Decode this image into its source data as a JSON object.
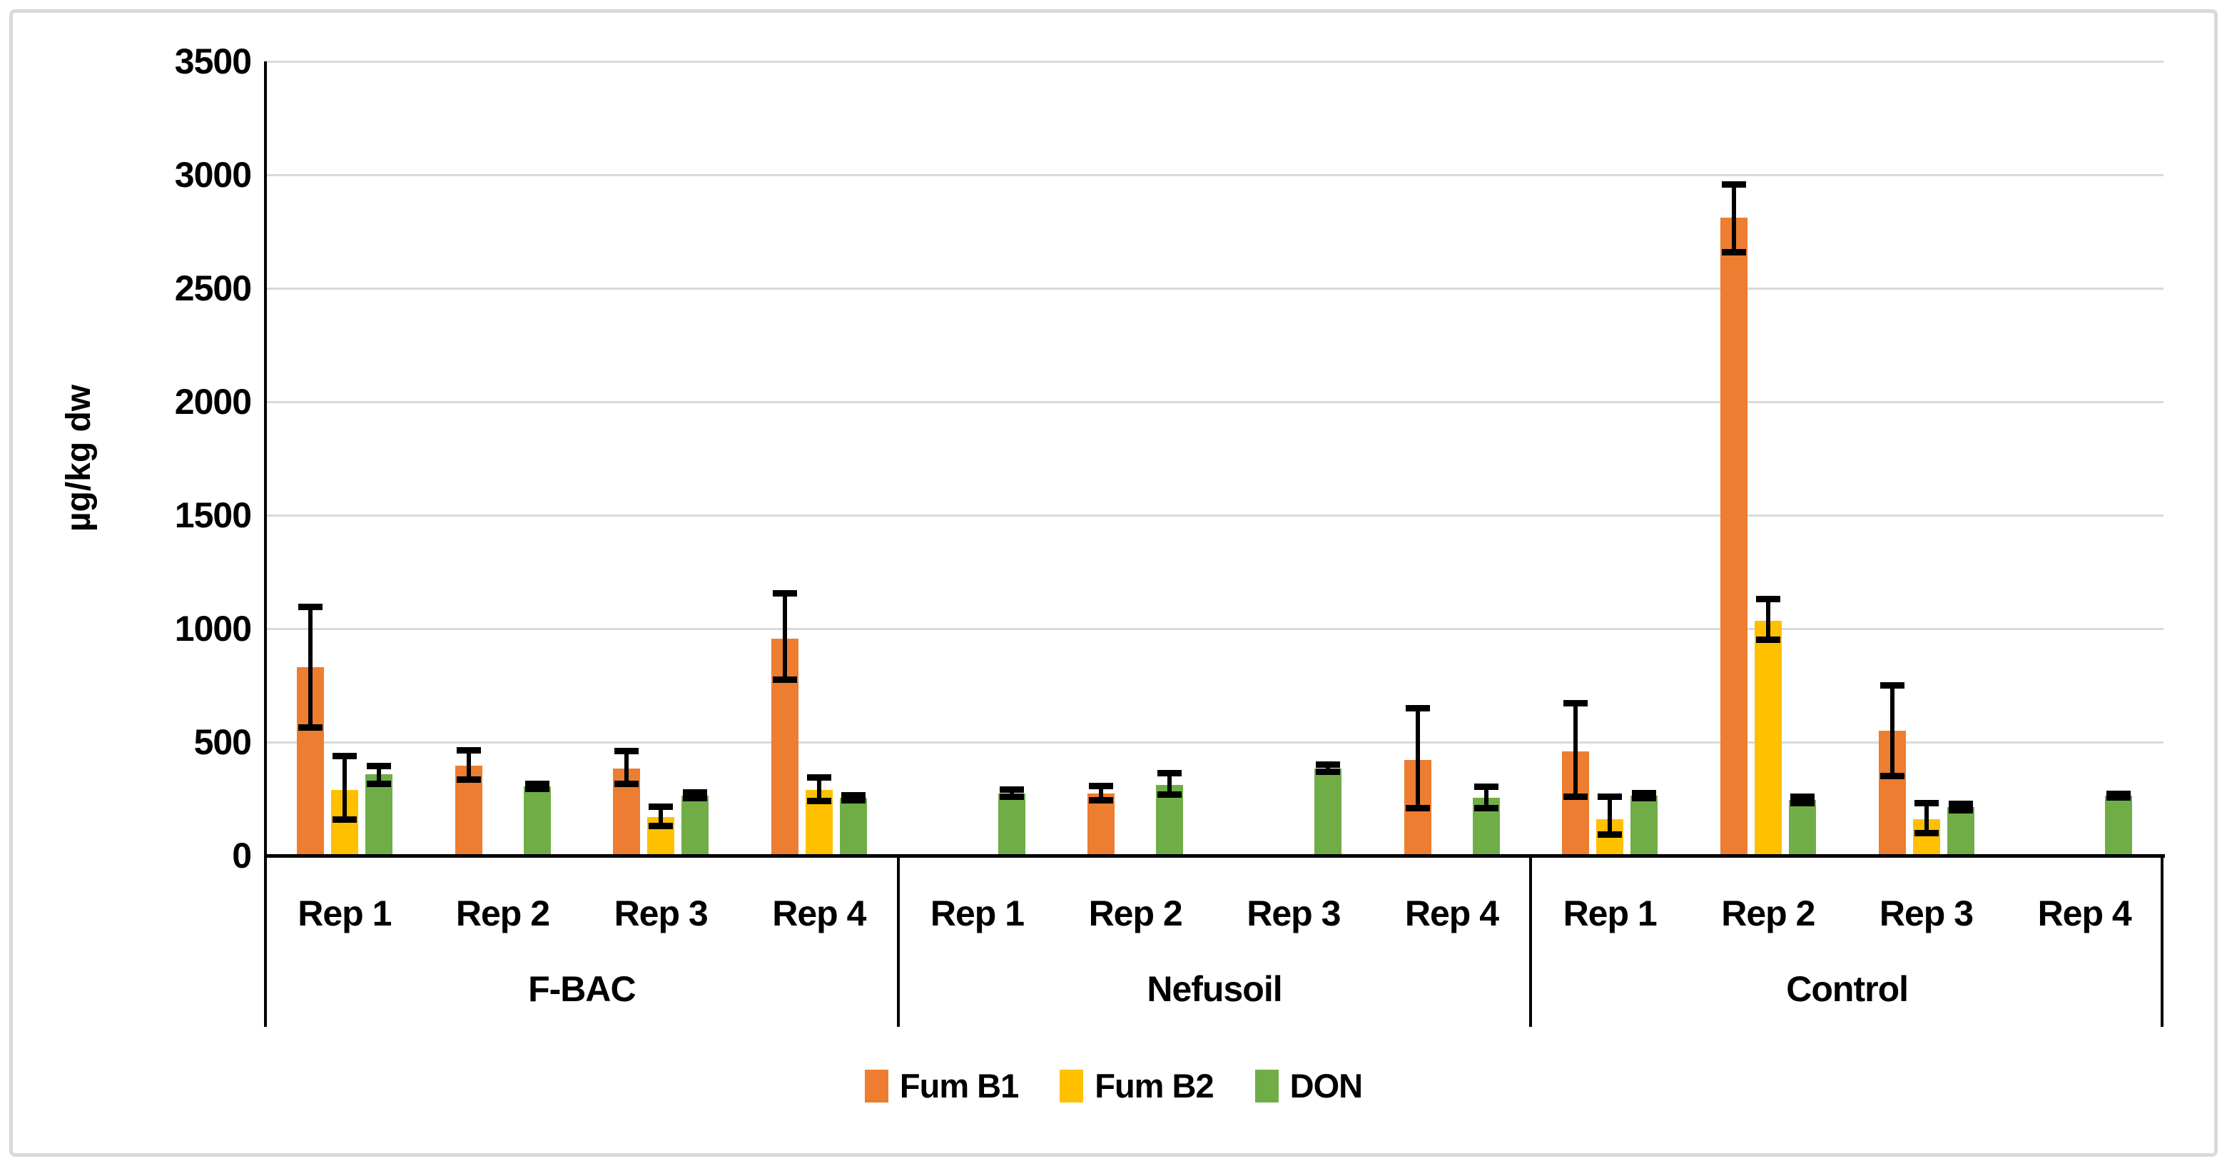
{
  "chart_data": {
    "type": "bar",
    "title": "",
    "ylabel": "µg/kg dw",
    "xlabel": "",
    "ylim": [
      0,
      3500
    ],
    "ytick_step": 500,
    "y_ticks": [
      "0",
      "500",
      "1000",
      "1500",
      "2000",
      "2500",
      "3000",
      "3500"
    ],
    "grid": true,
    "legend_position": "bottom",
    "series": [
      {
        "name": "Fum B1",
        "color": "#ED7D31"
      },
      {
        "name": "Fum B2",
        "color": "#FFC000"
      },
      {
        "name": "DON",
        "color": "#70AD47"
      }
    ],
    "rep_labels": [
      "Rep 1",
      "Rep 2",
      "Rep 3",
      "Rep 4"
    ],
    "groups": [
      {
        "label": "F-BAC",
        "reps": [
          {
            "label": "Rep 1",
            "values": [
              830,
              290,
              360
            ],
            "errors": [
              [
                565,
                1095
              ],
              [
                160,
                440
              ],
              [
                315,
                395
              ]
            ]
          },
          {
            "label": "Rep 2",
            "values": [
              395,
              0,
              305
            ],
            "errors": [
              [
                335,
                465
              ],
              null,
              [
                293,
                317
              ]
            ]
          },
          {
            "label": "Rep 3",
            "values": [
              385,
              170,
              265
            ],
            "errors": [
              [
                315,
                460
              ],
              [
                130,
                215
              ],
              [
                253,
                277
              ]
            ]
          },
          {
            "label": "Rep 4",
            "values": [
              955,
              290,
              255
            ],
            "errors": [
              [
                775,
                1155
              ],
              [
                240,
                345
              ],
              [
                245,
                265
              ]
            ]
          }
        ]
      },
      {
        "label": "Nefusoil",
        "reps": [
          {
            "label": "Rep 1",
            "values": [
              0,
              0,
              275
            ],
            "errors": [
              null,
              null,
              [
                258,
                292
              ]
            ]
          },
          {
            "label": "Rep 2",
            "values": [
              275,
              0,
              310
            ],
            "errors": [
              [
                243,
                307
              ],
              null,
              [
                268,
                364
              ]
            ]
          },
          {
            "label": "Rep 3",
            "values": [
              0,
              0,
              385
            ],
            "errors": [
              null,
              null,
              [
                368,
                402
              ]
            ]
          },
          {
            "label": "Rep 4",
            "values": [
              420,
              0,
              255
            ],
            "errors": [
              [
                210,
                650
              ],
              null,
              [
                208,
                304
              ]
            ]
          }
        ]
      },
      {
        "label": "Control",
        "reps": [
          {
            "label": "Rep 1",
            "values": [
              460,
              160,
              265
            ],
            "errors": [
              [
                258,
                670
              ],
              [
                94,
                260
              ],
              [
                254,
                276
              ]
            ]
          },
          {
            "label": "Rep 2",
            "values": [
              2810,
              1035,
              245
            ],
            "errors": [
              [
                2660,
                2958
              ],
              [
                950,
                1130
              ],
              [
                231,
                259
              ]
            ]
          },
          {
            "label": "Rep 3",
            "values": [
              550,
              160,
              215
            ],
            "errors": [
              [
                351,
                749
              ],
              [
                99,
                231
              ],
              [
                201,
                229
              ]
            ]
          },
          {
            "label": "Rep 4",
            "values": [
              0,
              0,
              265
            ],
            "errors": [
              null,
              null,
              [
                257,
                273
              ]
            ]
          }
        ]
      }
    ]
  }
}
